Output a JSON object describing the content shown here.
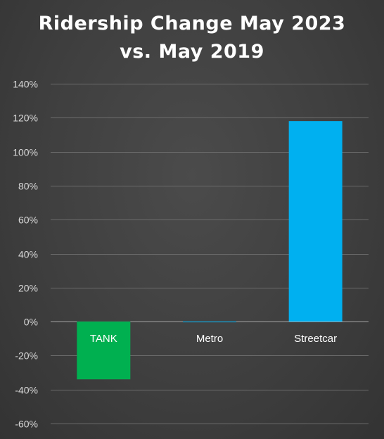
{
  "chart_data": {
    "type": "bar",
    "title_lines": [
      "Ridership Change May 2023",
      "vs. May 2019"
    ],
    "categories": [
      "TANK",
      "Metro",
      "Streetcar"
    ],
    "values": [
      -34,
      0,
      118
    ],
    "colors": [
      "#00b050",
      "#00b0f0",
      "#00b0f0"
    ],
    "ylim": [
      -60,
      140
    ],
    "yticks": [
      -60,
      -40,
      -20,
      0,
      20,
      40,
      60,
      80,
      100,
      120,
      140
    ],
    "ytick_labels": [
      "-60%",
      "-40%",
      "-20%",
      "0%",
      "20%",
      "40%",
      "60%",
      "80%",
      "100%",
      "120%",
      "140%"
    ],
    "grid": true,
    "legend": "none"
  }
}
